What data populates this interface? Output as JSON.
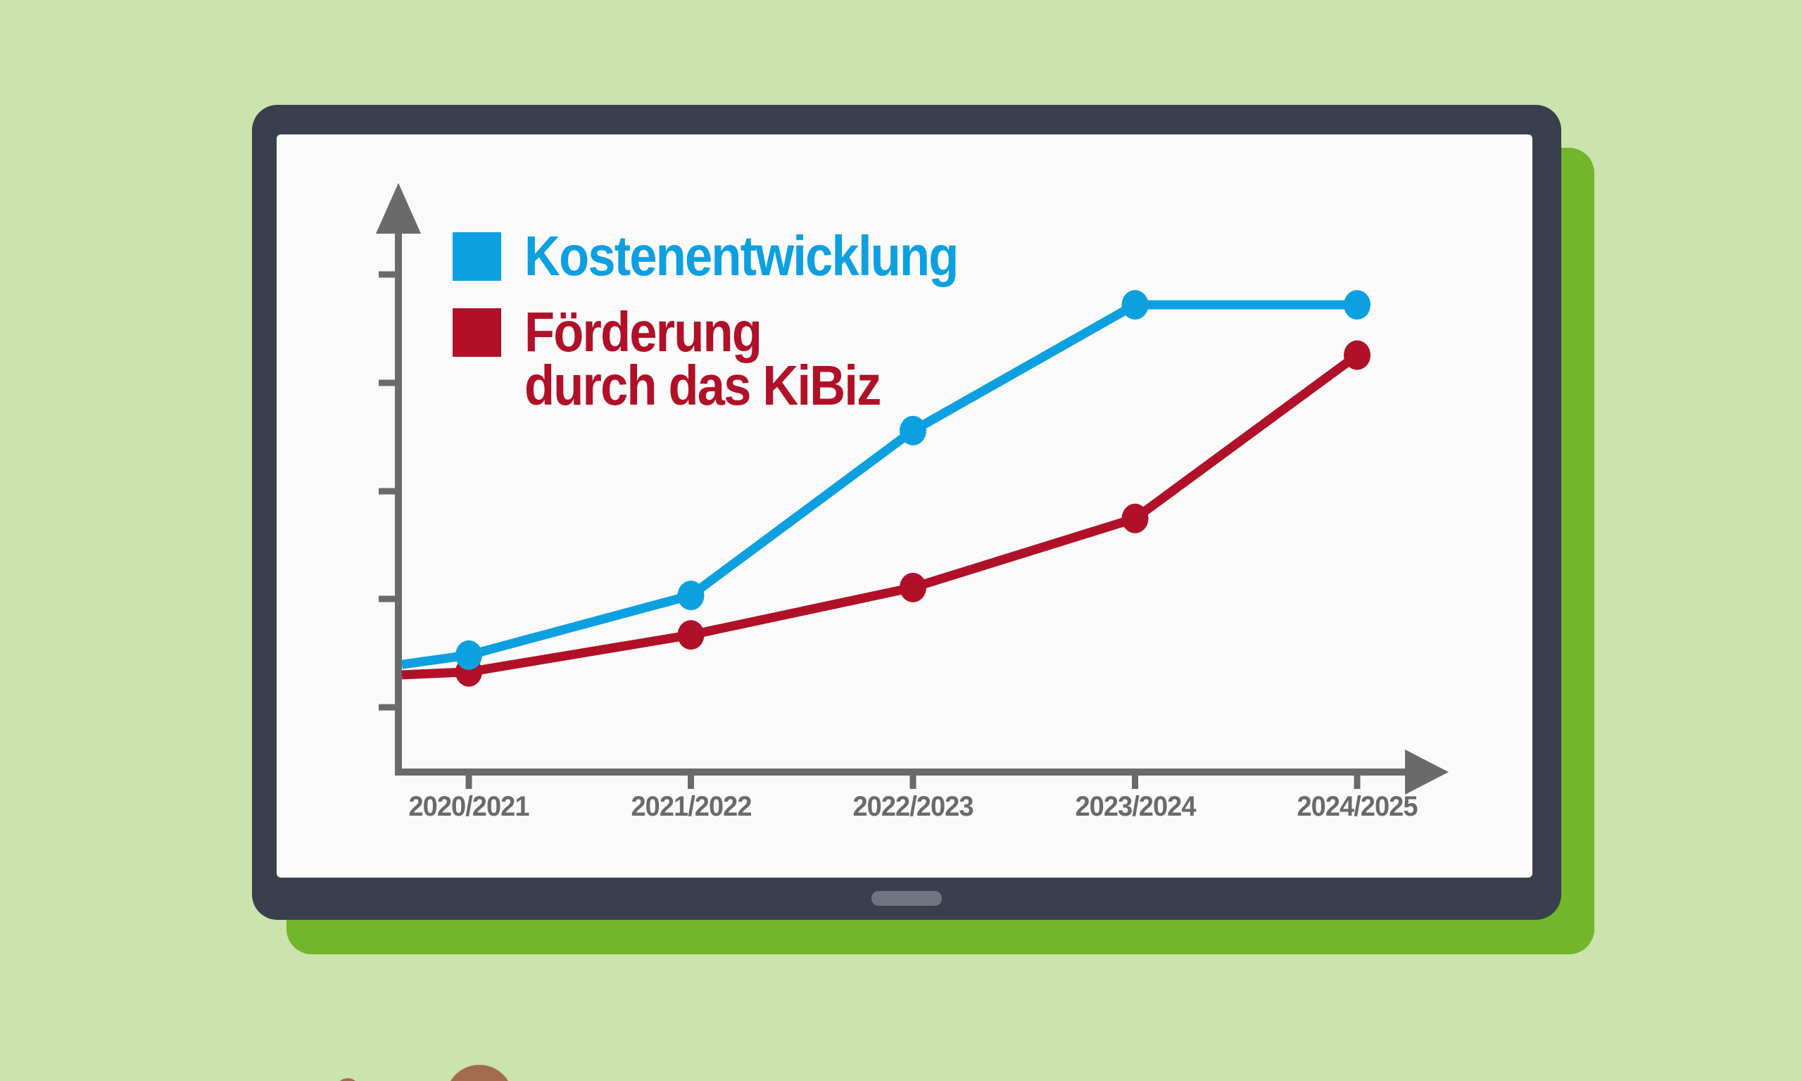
{
  "scene": {
    "background_color": "#cbe3ad",
    "tablet": {
      "frame_color": "#3a3f4e",
      "screen_color": "#fafafa",
      "shadow_color": "#72b62c",
      "home_button_color": "#70747e"
    },
    "decorations": {
      "color": "#a36c4d",
      "note": "two brown circles peeking over bottom edge of image"
    }
  },
  "chart_data": {
    "type": "line",
    "title": "",
    "xlabel": "",
    "ylabel": "",
    "categories": [
      "2020/2021",
      "2021/2022",
      "2022/2023",
      "2023/2024",
      "2024/2025"
    ],
    "series": [
      {
        "name": "Kostenentwicklung",
        "color": "#0da0e0",
        "axis_intercept": 21.8,
        "values": [
          23.7,
          35.8,
          69.2,
          94.7,
          94.7
        ]
      },
      {
        "name": "Förderung\ndurch das KiBiz",
        "color": "#b01128",
        "axis_intercept": 19.7,
        "values": [
          20.3,
          27.8,
          37.4,
          51.4,
          84.5
        ]
      }
    ],
    "y_axis": {
      "labeled": false,
      "tick_count": 5,
      "value_scale": "relative 0-100, no numeric labels shown in image"
    },
    "x_axis": {
      "labeled": true,
      "tick_count": 5
    },
    "axis_color": "#6a6a6a",
    "label_color": "#6a6a6a",
    "grid": false,
    "legend_position": "top-left inside plot area"
  }
}
